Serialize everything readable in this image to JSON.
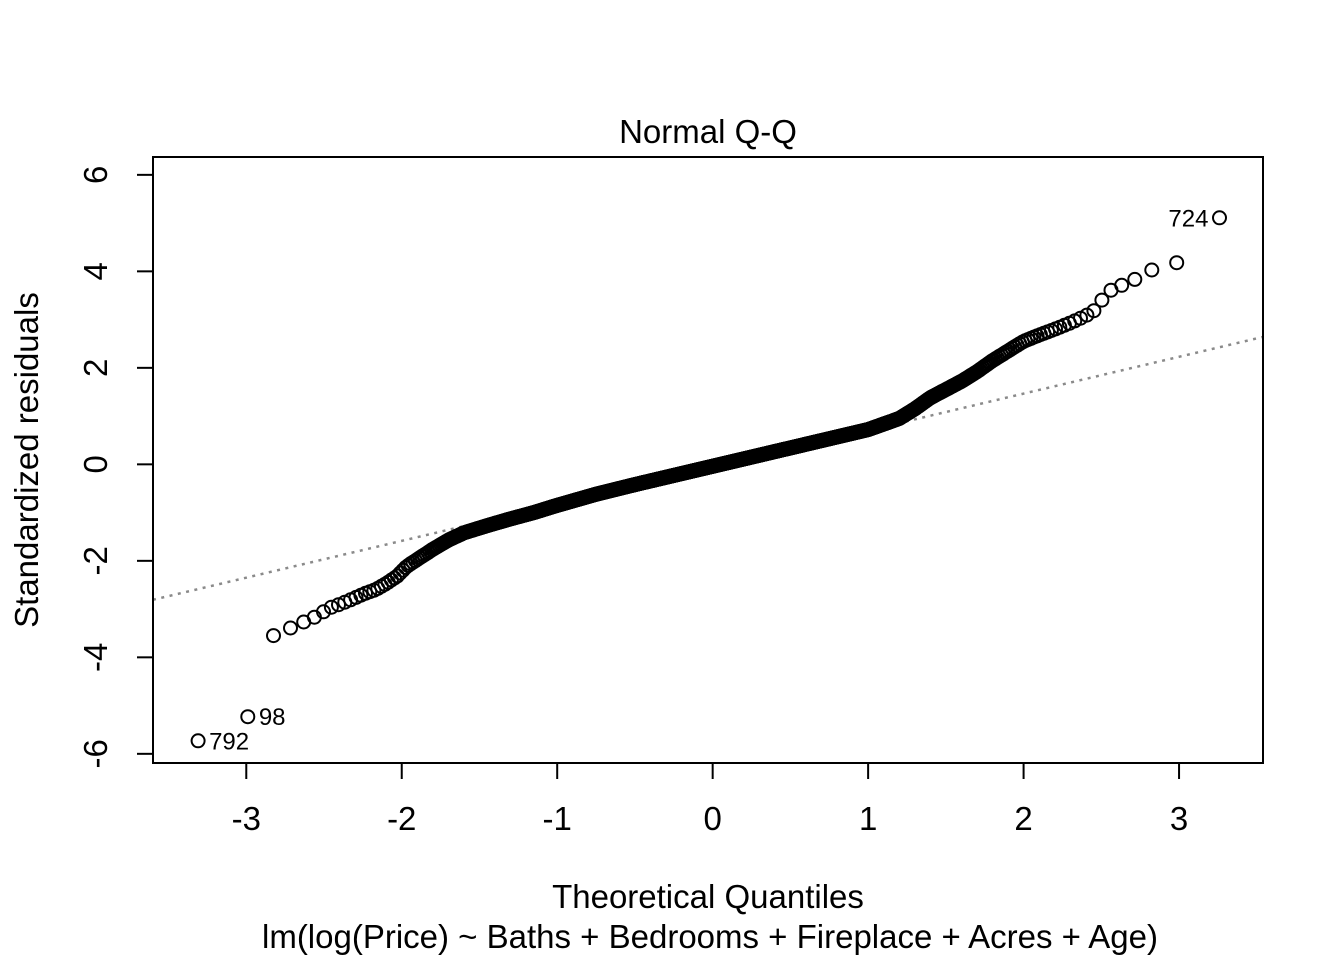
{
  "figure": {
    "background": "#ffffff"
  },
  "chart_data": {
    "type": "scatter",
    "subtype": "normal-qq-residual-plot",
    "title": "Normal Q-Q",
    "xlabel": "Theoretical Quantiles",
    "sub_caption": "lm(log(Price) ~ Baths + Bedrooms + Fireplace + Acres + Age)",
    "ylabel": "Standardized residuals",
    "xlim": [
      -3.6,
      3.54
    ],
    "ylim": [
      -6.19,
      6.37
    ],
    "x_tick_values": [
      -3,
      -2,
      -1,
      0,
      1,
      2,
      3
    ],
    "x_tick_labels": [
      "-3",
      "-2",
      "-1",
      "0",
      "1",
      "2",
      "3"
    ],
    "y_tick_values": [
      -6,
      -4,
      -2,
      0,
      2,
      4,
      6
    ],
    "y_tick_labels": [
      "-6",
      "-4",
      "-2",
      "0",
      "2",
      "4",
      "6"
    ],
    "grid": false,
    "legend": false,
    "n_points": 1057,
    "point_style": {
      "shape": "open-circle",
      "color": "#000000"
    },
    "reference_line": {
      "style": "dotted",
      "color": "#8a8a8a",
      "slope": 0.763,
      "intercept": -0.06
    },
    "quantile_curve": [
      [
        -2.86,
        -3.6
      ],
      [
        -2.74,
        -3.43
      ],
      [
        -2.64,
        -3.28
      ],
      [
        -2.55,
        -3.15
      ],
      [
        -2.46,
        -2.97
      ],
      [
        -2.4,
        -2.9
      ],
      [
        -2.33,
        -2.81
      ],
      [
        -2.24,
        -2.68
      ],
      [
        -2.17,
        -2.6
      ],
      [
        -2.1,
        -2.47
      ],
      [
        -2.03,
        -2.32
      ],
      [
        -1.97,
        -2.12
      ],
      [
        -1.9,
        -1.97
      ],
      [
        -1.8,
        -1.76
      ],
      [
        -1.7,
        -1.57
      ],
      [
        -1.6,
        -1.42
      ],
      [
        -1.45,
        -1.27
      ],
      [
        -1.3,
        -1.13
      ],
      [
        -1.15,
        -1.0
      ],
      [
        -1.0,
        -0.85
      ],
      [
        -0.75,
        -0.62
      ],
      [
        -0.5,
        -0.42
      ],
      [
        -0.25,
        -0.23
      ],
      [
        0.0,
        -0.04
      ],
      [
        0.25,
        0.15
      ],
      [
        0.5,
        0.34
      ],
      [
        0.75,
        0.53
      ],
      [
        1.0,
        0.72
      ],
      [
        1.2,
        0.95
      ],
      [
        1.3,
        1.15
      ],
      [
        1.4,
        1.38
      ],
      [
        1.5,
        1.55
      ],
      [
        1.6,
        1.72
      ],
      [
        1.7,
        1.92
      ],
      [
        1.8,
        2.15
      ],
      [
        1.9,
        2.35
      ],
      [
        2.0,
        2.55
      ],
      [
        2.1,
        2.68
      ],
      [
        2.2,
        2.8
      ],
      [
        2.3,
        2.93
      ],
      [
        2.4,
        3.08
      ],
      [
        2.47,
        3.22
      ],
      [
        2.53,
        3.55
      ],
      [
        2.6,
        3.68
      ],
      [
        2.68,
        3.76
      ],
      [
        2.79,
        3.99
      ],
      [
        2.96,
        4.18
      ]
    ],
    "outliers": [
      {
        "label": "792",
        "x": -3.31,
        "y": -5.73,
        "label_side": "right"
      },
      {
        "label": "98",
        "x": -2.99,
        "y": -5.23,
        "label_side": "right"
      },
      {
        "label": "724",
        "x": 3.26,
        "y": 5.11,
        "label_side": "left"
      }
    ]
  }
}
